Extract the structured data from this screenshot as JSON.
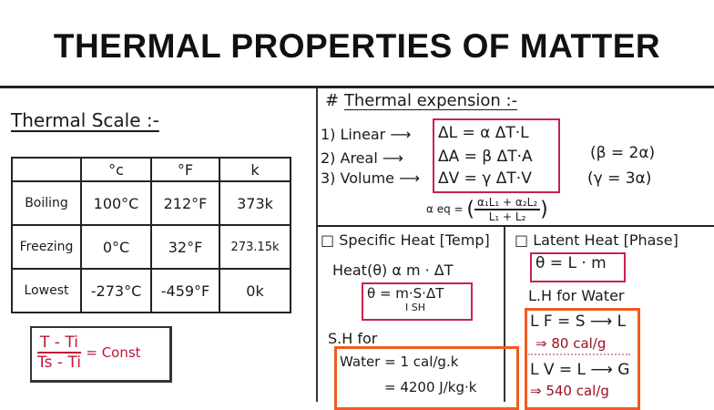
{
  "title": "THERMAL PROPERTIES OF MATTER",
  "thermal_scale": {
    "heading": "Thermal Scale :-",
    "table": {
      "headers": [
        "",
        "°c",
        "°F",
        "k"
      ],
      "rows": [
        [
          "Boiling",
          "100°C",
          "212°F",
          "373k"
        ],
        [
          "Freezing",
          "0°C",
          "32°F",
          "273.15k"
        ],
        [
          "Lowest",
          "-273°C",
          "-459°F",
          "0k"
        ]
      ]
    },
    "formula": {
      "numerator": "T - Ti",
      "denominator": "Ts - Ti",
      "rhs": "= Const"
    }
  },
  "thermal_expansion": {
    "heading": "Thermal expension :-",
    "hash": "#",
    "items": [
      {
        "label": "1) Linear ⟶",
        "formula": "ΔL = α ΔT·L",
        "note": ""
      },
      {
        "label": "2) Areal ⟶",
        "formula": "ΔA = β ΔT·A",
        "note": "(β = 2α)"
      },
      {
        "label": "3) Volume ⟶",
        "formula": "ΔV = γ ΔT·V",
        "note": "(γ = 3α)"
      }
    ],
    "alpha_eq": {
      "lhs": "α eq =",
      "numerator": "α₁L₁ + α₂L₂",
      "denominator": "L₁ + L₂"
    }
  },
  "specific_heat": {
    "heading": "□ Specific Heat [Temp]",
    "relation": "Heat(θ) α m · ΔT",
    "formula": "θ = m·S·ΔT",
    "formula_sub": "I SH",
    "sh_for": "S.H for",
    "water_line1": "Water = 1 cal/g.k",
    "water_line2": "= 4200 J/kg·k"
  },
  "latent_heat": {
    "heading": "□ Latent Heat [Phase]",
    "formula": "θ = L · m",
    "lh_for": "L.H for Water",
    "lf": "L F = S ⟶ L",
    "lf_value": "⇒ 80 cal/g",
    "lv": "L V = L ⟶ G",
    "lv_value": "⇒ 540 cal/g"
  },
  "colors": {
    "formula_red": "#c8234a",
    "highlight_orange": "#f05a1e"
  }
}
